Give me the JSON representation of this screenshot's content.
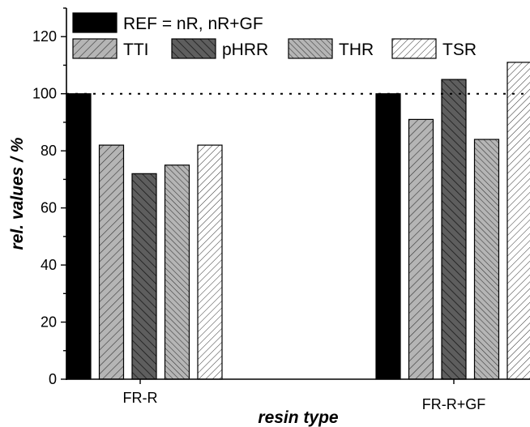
{
  "chart_data": {
    "type": "bar",
    "title": "",
    "xlabel": "resin type",
    "ylabel": "rel. values / %",
    "ylim": [
      0,
      130
    ],
    "yticks": [
      0,
      20,
      40,
      60,
      80,
      100,
      120
    ],
    "categories": [
      "FR-R",
      "FR-R+GF"
    ],
    "reference_line": 100,
    "grid": false,
    "legend_position": "top-left",
    "series": [
      {
        "name": "REF = nR, nR+GF",
        "values": [
          100,
          100
        ],
        "fill": "#000000",
        "pattern": "solid"
      },
      {
        "name": "TTI",
        "values": [
          82,
          91
        ],
        "fill": "#b5b5b5",
        "pattern": "hatch-up"
      },
      {
        "name": "pHRR",
        "values": [
          72,
          105
        ],
        "fill": "#5e5e5e",
        "pattern": "hatch-down"
      },
      {
        "name": "THR",
        "values": [
          75,
          84
        ],
        "fill": "#b5b5b5",
        "pattern": "hatch-down"
      },
      {
        "name": "TSR",
        "values": [
          82,
          111
        ],
        "fill": "#ffffff",
        "pattern": "hatch-up"
      }
    ]
  }
}
